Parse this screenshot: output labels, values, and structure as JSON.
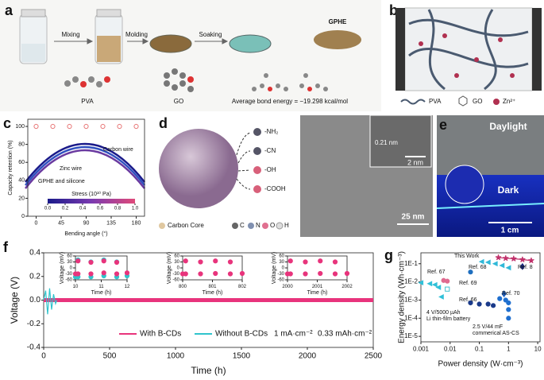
{
  "panels": {
    "a": {
      "label": "a",
      "steps": [
        "Mixing",
        "Molding",
        "Soaking"
      ],
      "product": "GPHE",
      "molecules": [
        "PVA",
        "GO"
      ],
      "energy_note": "Average bond energy = −19.298 kcal/mol"
    },
    "b": {
      "label": "b",
      "legend": [
        "PVA",
        "GO",
        "Zn²⁺"
      ]
    },
    "c": {
      "label": "c"
    },
    "d": {
      "label": "d",
      "groups": [
        "-NH₂",
        "-CN",
        "-OH",
        "-COOH"
      ],
      "legend": [
        "Carbon Core",
        "C",
        "N",
        "O",
        "H"
      ],
      "lattice": "0.21 nm",
      "inset_scale": "2 nm",
      "scale": "25 nm"
    },
    "e": {
      "label": "e",
      "top": "Daylight",
      "bottom": "Dark",
      "scale": "1 cm"
    },
    "f": {
      "label": "f"
    },
    "g": {
      "label": "g"
    }
  },
  "chart_data": [
    {
      "type": "scatter",
      "xlabel": "Bending angle (°)",
      "ylabel": "Capacity retention (%)",
      "x": [
        0,
        30,
        60,
        90,
        120,
        150,
        180
      ],
      "values": [
        100,
        100,
        100,
        100,
        100,
        100,
        100
      ],
      "color": "#e87a7a",
      "marker": "circle",
      "open": true,
      "xlim": [
        -15,
        195
      ],
      "ylim": [
        0,
        108
      ],
      "xticks": [
        0,
        45,
        90,
        135,
        180
      ],
      "yticks": [
        0,
        20,
        40,
        60,
        80,
        100
      ],
      "annotations": [
        "Carbon wire",
        "Zinc wire",
        "GPHE and silicone"
      ],
      "colorbar": {
        "label": "Stress (10¹⁰ Pa)",
        "lim": [
          0,
          1
        ],
        "ticks": [
          {
            "value": 0,
            "label": "0.0"
          },
          0.2,
          0.4,
          0.6,
          0.8,
          {
            "value": 1,
            "label": "1.0"
          }
        ]
      }
    },
    {
      "type": "line",
      "xlabel": "Time (h)",
      "ylabel": "Voltage (V)",
      "xlim": [
        0,
        2500
      ],
      "ylim": [
        -0.4,
        0.4
      ],
      "xticks": [
        0,
        500,
        1000,
        1500,
        2000,
        2500
      ],
      "yticks": [
        -0.4,
        -0.2,
        {
          "value": 0,
          "label": "0.0"
        },
        0.2,
        0.4
      ],
      "series": [
        {
          "name": "With B-CDs",
          "color": "#e8347c",
          "x": [
            0,
            2500
          ],
          "values": [
            0,
            0
          ]
        },
        {
          "name": "Without B-CDs",
          "color": "#30c4cc",
          "x": [
            0,
            15,
            30,
            45,
            60,
            75,
            90,
            100
          ],
          "values": [
            0,
            0.08,
            -0.12,
            0.1,
            -0.08,
            0.05,
            -0.03,
            0
          ]
        }
      ],
      "notes": [
        "1 mA·cm⁻²",
        "0.33 mAh·cm⁻²"
      ],
      "insets": [
        {
          "xlabel": "Time (h)",
          "ylabel": "Voltage (mV)",
          "xlim": [
            10,
            12
          ],
          "ylim": [
            -60,
            60
          ],
          "xticks": [
            10,
            11,
            12
          ],
          "yticks": [
            -60,
            -30,
            0,
            30,
            60
          ],
          "series": [
            {
              "color": "#30c4cc",
              "x": [
                10,
                10.1,
                10.1,
                10.6,
                10.6,
                11.1,
                11.1,
                11.6,
                11.6,
                12
              ],
              "values": [
                -45,
                -45,
                40,
                30,
                -45,
                -40,
                40,
                30,
                -45,
                -40
              ]
            },
            {
              "color": "#e8347c",
              "x": [
                10,
                10.1,
                10.1,
                10.6,
                10.6,
                11.1,
                11.1,
                11.6,
                11.6,
                12
              ],
              "values": [
                -30,
                -30,
                35,
                28,
                -30,
                -25,
                35,
                28,
                -30,
                -25
              ]
            }
          ]
        },
        {
          "xlabel": "Time (h)",
          "ylabel": "Voltage (mV)",
          "xlim": [
            800,
            802
          ],
          "ylim": [
            -60,
            60
          ],
          "xticks": [
            800,
            801,
            802
          ],
          "yticks": [
            -60,
            -30,
            0,
            30,
            60
          ],
          "series": [
            {
              "color": "#e8347c",
              "x": [
                800,
                800.1,
                800.1,
                800.6,
                800.6,
                801.1,
                801.1,
                801.6,
                801.6,
                802
              ],
              "values": [
                -30,
                -30,
                35,
                30,
                -30,
                -28,
                35,
                30,
                -30,
                -28
              ]
            }
          ]
        },
        {
          "xlabel": "Time (h)",
          "ylabel": "Voltage (mV)",
          "xlim": [
            2000,
            2002
          ],
          "ylim": [
            -60,
            60
          ],
          "xticks": [
            2000,
            2001,
            2002
          ],
          "yticks": [
            -60,
            -30,
            0,
            30,
            60
          ],
          "series": [
            {
              "color": "#e8347c",
              "x": [
                2000,
                2000.1,
                2000.1,
                2000.6,
                2000.6,
                2001.1,
                2001.1,
                2001.6,
                2001.6,
                2002
              ],
              "values": [
                -30,
                -30,
                35,
                30,
                -30,
                -28,
                35,
                30,
                -30,
                -28
              ]
            }
          ]
        }
      ]
    },
    {
      "type": "scatter",
      "xlabel": "Power density (W·cm⁻³)",
      "ylabel": "Energy density (Wh·cm⁻³)",
      "xlog": true,
      "ylog": true,
      "xlim": [
        0.001,
        12
      ],
      "ylim": [
        5e-06,
        0.4
      ],
      "xticks": [
        0.001,
        0.01,
        0.1,
        1,
        10
      ],
      "yticks": [
        {
          "value": 1e-05,
          "label": "1E-5"
        },
        {
          "value": 0.0001,
          "label": "1E-4"
        },
        {
          "value": 0.001,
          "label": "1E-3"
        },
        {
          "value": 0.01,
          "label": "1E-2"
        },
        {
          "value": 0.1,
          "label": "1E-1"
        }
      ],
      "series": [
        {
          "color": "#c0306a",
          "marker": "star",
          "line": true,
          "x": [
            0.45,
            0.8,
            1.5,
            3,
            6
          ],
          "values": [
            0.22,
            0.2,
            0.19,
            0.17,
            0.15
          ]
        },
        {
          "color": "#30b8d8",
          "marker": "triangle",
          "x": [
            0.12,
            0.2,
            0.35,
            0.6,
            1
          ],
          "values": [
            0.13,
            0.12,
            0.1,
            0.08,
            0.06
          ]
        },
        {
          "color": "#1a2a80",
          "marker": "diamond",
          "x": [
            3
          ],
          "values": [
            0.07
          ]
        },
        {
          "color": "#1f6fbf",
          "marker": "circle",
          "x": [
            0.05
          ],
          "values": [
            0.035
          ]
        },
        {
          "color": "#e06a90",
          "marker": "circle",
          "x": [
            0.006,
            0.008
          ],
          "values": [
            0.012,
            0.011
          ]
        },
        {
          "color": "#40c0d0",
          "marker": "square",
          "open": true,
          "x": [
            0.008
          ],
          "values": [
            0.004
          ]
        },
        {
          "color": "#1f5fbf",
          "marker": "diamond",
          "x": [
            0.7
          ],
          "values": [
            0.0022
          ]
        },
        {
          "color": "#1a3a8a",
          "marker": "circle",
          "x": [
            0.05,
            0.1,
            0.2,
            0.3
          ],
          "values": [
            0.0007,
            0.0006,
            0.0006,
            0.0005
          ]
        },
        {
          "color": "#30c0d8",
          "marker": "triangle",
          "x": [
            0.001,
            0.002,
            0.003,
            0.004,
            0.005
          ],
          "values": [
            0.009,
            0.008,
            0.007,
            0.005,
            0.0015
          ]
        },
        {
          "color": "#1f6fcf",
          "marker": "circle",
          "x": [
            0.5,
            0.8,
            1,
            1,
            1
          ],
          "values": [
            0.0012,
            0.001,
            0.0007,
            0.0003,
            0.0001
          ]
        }
      ],
      "annotations": [
        "This Work",
        "Ref. 68",
        "Ref. 8",
        "Ref. 67",
        "Ref. 69",
        "Ref. 70",
        "Ref. 66"
      ],
      "notes": [
        [
          "4 V/5000 µAh",
          "Li thin-film battery"
        ],
        [
          "2.5 V/44 mF",
          "commerical AS-CS"
        ]
      ]
    }
  ]
}
